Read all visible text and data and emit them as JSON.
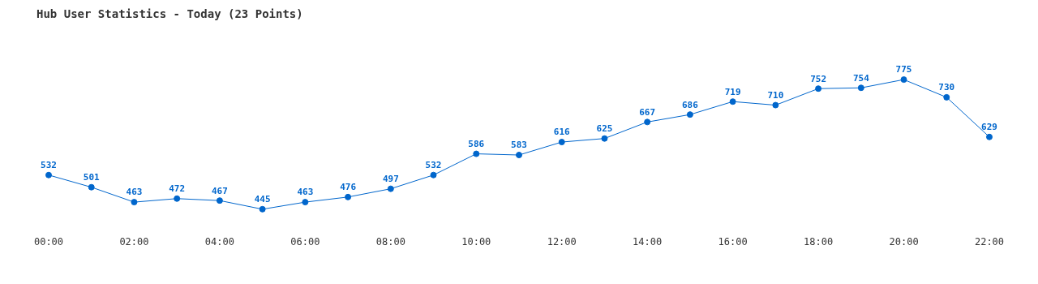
{
  "chart_data": {
    "type": "line",
    "title": "Hub User Statistics - Today (23 Points)",
    "categories": [
      "00:00",
      null,
      "02:00",
      null,
      "04:00",
      null,
      "06:00",
      null,
      "08:00",
      null,
      "10:00",
      null,
      "12:00",
      null,
      "14:00",
      null,
      "16:00",
      null,
      "18:00",
      null,
      "20:00",
      null,
      "22:00"
    ],
    "series": [
      {
        "color": "#0066cc",
        "values": [
          532,
          501,
          463,
          472,
          467,
          445,
          463,
          476,
          497,
          532,
          586,
          583,
          616,
          625,
          667,
          686,
          719,
          710,
          752,
          754,
          775,
          730,
          629
        ]
      }
    ],
    "data_labels": true,
    "marker": "circle",
    "line_style": "solid",
    "grid": false,
    "legend": false
  }
}
